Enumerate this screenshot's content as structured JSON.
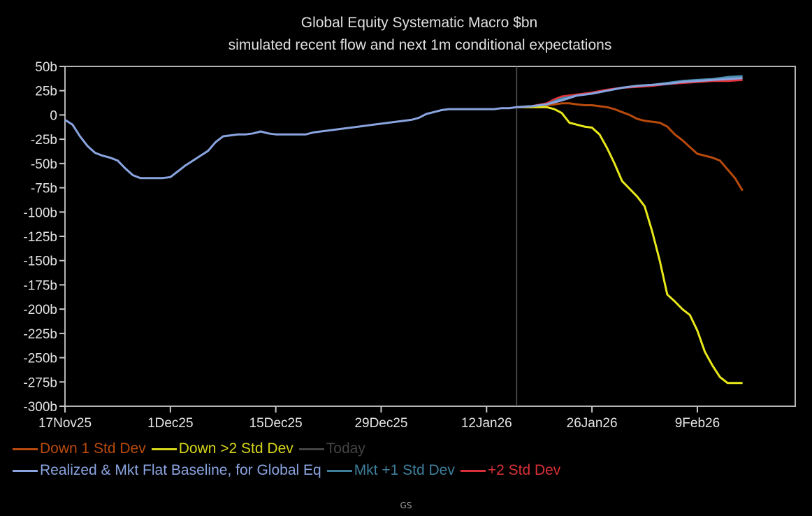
{
  "chart_data": {
    "type": "line",
    "title": "Global Equity Systematic Macro $bn",
    "subtitle": "simulated recent flow and next 1m conditional expectations",
    "xlabel": "",
    "ylabel": "",
    "x_unit": "days since 17Nov25",
    "xlim": [
      0,
      91
    ],
    "ylim": [
      -300,
      50
    ],
    "y_ticks": [
      50,
      25,
      0,
      -25,
      -50,
      -75,
      -100,
      -125,
      -150,
      -175,
      -200,
      -225,
      -250,
      -275,
      -300
    ],
    "y_tick_labels": [
      "50b",
      "25b",
      "0",
      "-25b",
      "-50b",
      "-75b",
      "-100b",
      "-125b",
      "-150b",
      "-175b",
      "-200b",
      "-225b",
      "-250b",
      "-275b",
      "-300b"
    ],
    "x_ticks": [
      0,
      14,
      28,
      42,
      56,
      70,
      84
    ],
    "x_tick_labels": [
      "17Nov25",
      "1Dec25",
      "15Dec25",
      "29Dec25",
      "12Jan26",
      "26Jan26",
      "9Feb26"
    ],
    "grid": false,
    "today_x": 60,
    "legend_placement": "bottom",
    "series": [
      {
        "name": "Down 1 Std Dev",
        "color": "#b84a0c",
        "x": [
          60,
          62,
          63,
          64,
          65,
          66,
          67,
          68,
          69,
          70,
          71,
          72,
          73,
          74,
          75,
          76,
          77,
          78,
          79,
          80,
          81,
          82,
          83,
          84,
          85,
          86,
          87,
          88,
          89,
          90
        ],
        "y": [
          8,
          8,
          9,
          10,
          11,
          12,
          12,
          11,
          10,
          10,
          9,
          8,
          6,
          3,
          0,
          -4,
          -6,
          -7,
          -8,
          -12,
          -20,
          -26,
          -33,
          -40,
          -42,
          -44,
          -47,
          -56,
          -65,
          -78
        ]
      },
      {
        "name": "Down >2 Std Dev",
        "color": "#e8e81a",
        "x": [
          60,
          62,
          63,
          64,
          65,
          66,
          67,
          68,
          69,
          70,
          71,
          72,
          73,
          74,
          75,
          76,
          77,
          78,
          79,
          80,
          81,
          82,
          83,
          84,
          85,
          86,
          87,
          88,
          89,
          90
        ],
        "y": [
          8,
          8,
          8,
          8,
          6,
          2,
          -8,
          -10,
          -12,
          -13,
          -20,
          -34,
          -50,
          -68,
          -76,
          -84,
          -94,
          -120,
          -150,
          -185,
          -192,
          -200,
          -206,
          -222,
          -244,
          -258,
          -270,
          -276,
          -276,
          -276
        ]
      },
      {
        "name": "Today",
        "color": "#555555",
        "style": "vertical-marker"
      },
      {
        "name": "Realized & Mkt Flat Baseline, for Global Eq",
        "color": "#8aa4e0",
        "x": [
          0,
          1,
          2,
          3,
          4,
          5,
          6,
          7,
          8,
          9,
          10,
          11,
          12,
          13,
          14,
          15,
          16,
          17,
          18,
          19,
          20,
          21,
          22,
          23,
          24,
          25,
          26,
          27,
          28,
          29,
          30,
          31,
          32,
          33,
          34,
          35,
          36,
          37,
          38,
          39,
          40,
          41,
          42,
          43,
          44,
          45,
          46,
          47,
          48,
          49,
          50,
          51,
          52,
          53,
          54,
          55,
          56,
          57,
          58,
          59,
          60,
          62,
          64,
          66,
          68,
          70,
          72,
          74,
          76,
          78,
          80,
          82,
          84,
          86,
          88,
          90
        ],
        "y": [
          -5,
          -10,
          -22,
          -32,
          -39,
          -42,
          -44,
          -47,
          -55,
          -62,
          -65,
          -65,
          -65,
          -65,
          -64,
          -58,
          -52,
          -47,
          -42,
          -37,
          -28,
          -22,
          -21,
          -20,
          -20,
          -19,
          -17,
          -19,
          -20,
          -20,
          -20,
          -20,
          -20,
          -18,
          -17,
          -16,
          -15,
          -14,
          -13,
          -12,
          -11,
          -10,
          -9,
          -8,
          -7,
          -6,
          -5,
          -3,
          1,
          3,
          5,
          6,
          6,
          6,
          6,
          6,
          6,
          6,
          7,
          7,
          8,
          9,
          11,
          15,
          20,
          22,
          25,
          28,
          30,
          31,
          32,
          34,
          35,
          36,
          37,
          38
        ]
      },
      {
        "name": "Mkt +1 Std Dev",
        "color": "#4a8fb0",
        "x": [
          60,
          62,
          64,
          65,
          66,
          68,
          70,
          72,
          74,
          76,
          78,
          80,
          82,
          84,
          86,
          88,
          90
        ],
        "y": [
          8,
          9,
          11,
          14,
          17,
          20,
          22,
          25,
          28,
          30,
          31,
          33,
          35,
          36,
          37,
          39,
          40
        ]
      },
      {
        "name": "+2 Std Dev",
        "color": "#e0333a",
        "x": [
          60,
          62,
          64,
          65,
          66,
          68,
          70,
          72,
          74,
          76,
          78,
          80,
          82,
          84,
          86,
          88,
          90
        ],
        "y": [
          8,
          9,
          12,
          16,
          19,
          21,
          23,
          26,
          28,
          29,
          30,
          32,
          33,
          34,
          35,
          35,
          36
        ]
      }
    ]
  },
  "legend": {
    "row1": [
      {
        "label": "Down 1 Std Dev",
        "color": "#b84a0c"
      },
      {
        "label": "Down >2 Std Dev",
        "color": "#d6d61a"
      },
      {
        "label": "Today",
        "color": "#444444"
      }
    ],
    "row2": [
      {
        "label": "Realized & Mkt Flat Baseline, for Global Eq",
        "color": "#8aa4e0"
      },
      {
        "label": "Mkt +1 Std Dev",
        "color": "#3f7f9c"
      },
      {
        "label": "+2 Std Dev",
        "color": "#d83038"
      }
    ]
  },
  "footer": {
    "source": "GS"
  }
}
